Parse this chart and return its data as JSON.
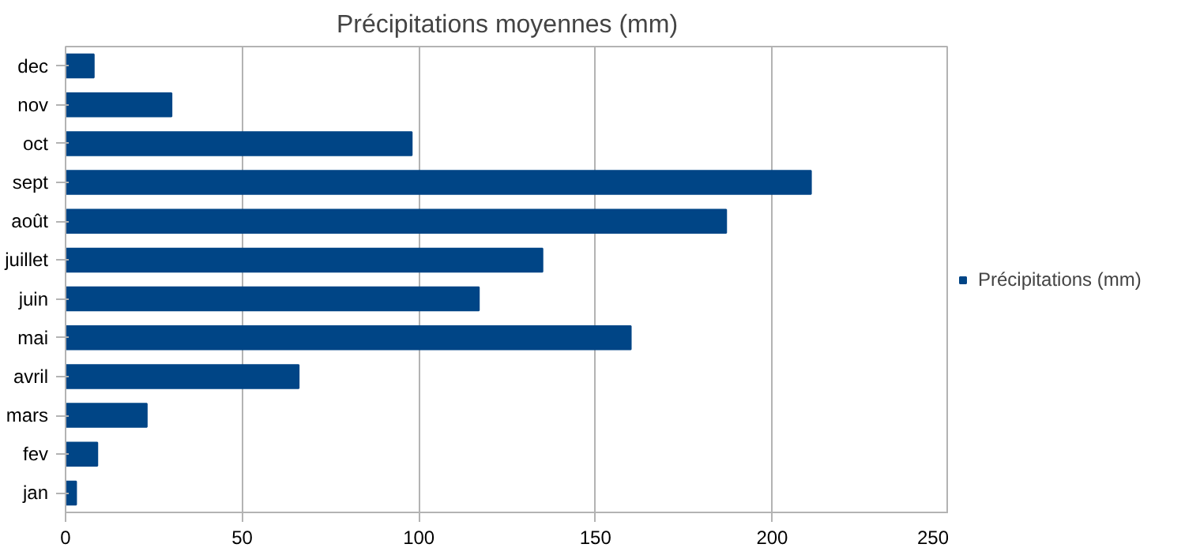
{
  "chart_data": {
    "type": "bar",
    "orientation": "horizontal",
    "title": "Précipitations moyennes (mm)",
    "categories": [
      "dec",
      "nov",
      "oct",
      "sept",
      "août",
      "juillet",
      "juin",
      "mai",
      "avril",
      "mars",
      "fev",
      "jan"
    ],
    "series": [
      {
        "name": "Précipitations (mm)",
        "color": "#004586",
        "values": [
          8,
          30,
          98,
          211,
          187,
          135,
          117,
          160,
          66,
          23,
          9,
          3
        ]
      }
    ],
    "xlim": [
      0,
      250
    ],
    "xticks": [
      0,
      50,
      100,
      150,
      200,
      250
    ],
    "grid": "x",
    "legend": "right"
  }
}
